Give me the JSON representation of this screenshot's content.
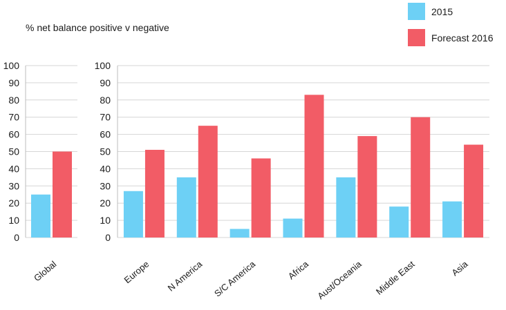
{
  "chart_data": [
    {
      "type": "bar",
      "title": "% net balance positive v negative",
      "categories": [
        "Global"
      ],
      "series": [
        {
          "name": "2015",
          "values": [
            25
          ]
        },
        {
          "name": "Forecast 2016",
          "values": [
            50
          ]
        }
      ],
      "ylim": [
        0,
        100
      ],
      "yticks": [
        0,
        10,
        20,
        30,
        40,
        50,
        60,
        70,
        80,
        90,
        100
      ],
      "grid": true
    },
    {
      "type": "bar",
      "categories": [
        "Europe",
        "N America",
        "S/C America",
        "Africa",
        "Aust/Oceania",
        "Middle East",
        "Asia"
      ],
      "series": [
        {
          "name": "2015",
          "values": [
            27,
            35,
            5,
            11,
            35,
            18,
            21
          ]
        },
        {
          "name": "Forecast 2016",
          "values": [
            51,
            65,
            46,
            83,
            59,
            70,
            54
          ]
        }
      ],
      "ylim": [
        0,
        100
      ],
      "yticks": [
        0,
        10,
        20,
        30,
        40,
        50,
        60,
        70,
        80,
        90,
        100
      ],
      "grid": true
    }
  ],
  "legend": {
    "position": "top-right",
    "items": [
      {
        "label": "2015",
        "color": "#6dd0f5"
      },
      {
        "label": "Forecast 2016",
        "color": "#f25c66"
      }
    ]
  },
  "colors": {
    "series_2015": "#6dd0f5",
    "series_2016": "#f25c66",
    "grid": "#d6d6d6"
  }
}
